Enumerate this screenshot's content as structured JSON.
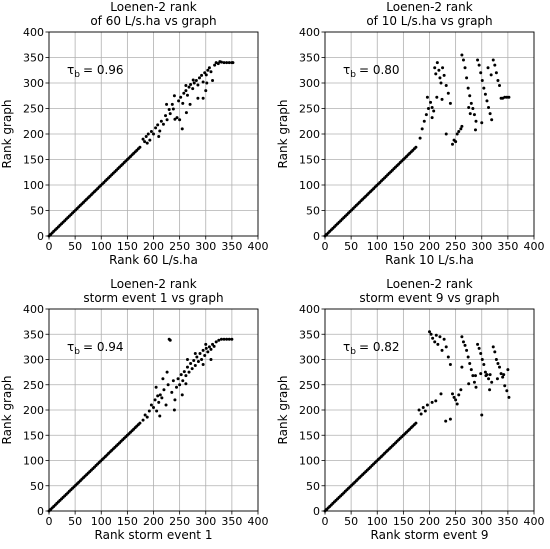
{
  "chart_data": [
    {
      "type": "scatter",
      "title": [
        "Loenen-2 rank",
        "of 60 L/s.ha vs graph"
      ],
      "xlabel": "Rank 60 L/s.ha",
      "ylabel": "Rank graph",
      "xlim": [
        0,
        400
      ],
      "ylim": [
        0,
        400
      ],
      "xticks": [
        0,
        50,
        100,
        150,
        200,
        250,
        300,
        350,
        400
      ],
      "yticks": [
        0,
        50,
        100,
        150,
        200,
        250,
        300,
        350,
        400
      ],
      "grid": true,
      "annotation": {
        "symbol": "τ",
        "subscript": "b",
        "value": "= 0.96"
      },
      "diagonal": {
        "from": 0,
        "to": 175
      },
      "points": [
        [
          180,
          190
        ],
        [
          183,
          185
        ],
        [
          186,
          195
        ],
        [
          188,
          182
        ],
        [
          190,
          200
        ],
        [
          193,
          188
        ],
        [
          196,
          205
        ],
        [
          200,
          200
        ],
        [
          204,
          212
        ],
        [
          208,
          218
        ],
        [
          212,
          206
        ],
        [
          215,
          225
        ],
        [
          219,
          219
        ],
        [
          223,
          236
        ],
        [
          226,
          228
        ],
        [
          230,
          248
        ],
        [
          232,
          240
        ],
        [
          236,
          258
        ],
        [
          238,
          249
        ],
        [
          241,
          229
        ],
        [
          245,
          232
        ],
        [
          248,
          265
        ],
        [
          252,
          272
        ],
        [
          256,
          260
        ],
        [
          258,
          280
        ],
        [
          262,
          285
        ],
        [
          265,
          276
        ],
        [
          268,
          292
        ],
        [
          271,
          297
        ],
        [
          275,
          289
        ],
        [
          278,
          300
        ],
        [
          282,
          305
        ],
        [
          285,
          296
        ],
        [
          288,
          310
        ],
        [
          292,
          315
        ],
        [
          295,
          302
        ],
        [
          298,
          320
        ],
        [
          301,
          316
        ],
        [
          304,
          325
        ],
        [
          307,
          330
        ],
        [
          310,
          322
        ],
        [
          313,
          305
        ],
        [
          317,
          335
        ],
        [
          320,
          340
        ],
        [
          324,
          338
        ],
        [
          327,
          342
        ],
        [
          330,
          341
        ],
        [
          335,
          340
        ],
        [
          340,
          340
        ],
        [
          345,
          340
        ],
        [
          350,
          340
        ],
        [
          352,
          340
        ],
        [
          225,
          258
        ],
        [
          250,
          228
        ],
        [
          263,
          242
        ],
        [
          295,
          270
        ],
        [
          240,
          275
        ],
        [
          270,
          258
        ],
        [
          285,
          270
        ],
        [
          255,
          210
        ],
        [
          300,
          285
        ],
        [
          210,
          195
        ],
        [
          302,
          300
        ],
        [
          262,
          295
        ],
        [
          276,
          306
        ]
      ]
    },
    {
      "type": "scatter",
      "title": [
        "Loenen-2 rank",
        "of 10 L/s.ha vs graph"
      ],
      "xlabel": "Rank 10 L/s.ha",
      "ylabel": "Rank graph",
      "xlim": [
        0,
        400
      ],
      "ylim": [
        0,
        400
      ],
      "xticks": [
        0,
        50,
        100,
        150,
        200,
        250,
        300,
        350,
        400
      ],
      "yticks": [
        0,
        50,
        100,
        150,
        200,
        250,
        300,
        350,
        400
      ],
      "grid": true,
      "annotation": {
        "symbol": "τ",
        "subscript": "b",
        "value": "= 0.80"
      },
      "diagonal": {
        "from": 0,
        "to": 175
      },
      "points": [
        [
          182,
          192
        ],
        [
          186,
          210
        ],
        [
          190,
          225
        ],
        [
          194,
          238
        ],
        [
          198,
          250
        ],
        [
          202,
          262
        ],
        [
          205,
          232
        ],
        [
          208,
          245
        ],
        [
          210,
          330
        ],
        [
          212,
          318
        ],
        [
          215,
          340
        ],
        [
          218,
          325
        ],
        [
          220,
          310
        ],
        [
          222,
          300
        ],
        [
          225,
          330
        ],
        [
          228,
          315
        ],
        [
          232,
          295
        ],
        [
          236,
          280
        ],
        [
          240,
          260
        ],
        [
          244,
          180
        ],
        [
          247,
          188
        ],
        [
          250,
          185
        ],
        [
          253,
          200
        ],
        [
          256,
          205
        ],
        [
          260,
          210
        ],
        [
          262,
          355
        ],
        [
          265,
          345
        ],
        [
          268,
          330
        ],
        [
          271,
          310
        ],
        [
          274,
          290
        ],
        [
          277,
          275
        ],
        [
          280,
          260
        ],
        [
          283,
          250
        ],
        [
          286,
          238
        ],
        [
          289,
          225
        ],
        [
          292,
          345
        ],
        [
          295,
          335
        ],
        [
          298,
          320
        ],
        [
          301,
          305
        ],
        [
          304,
          290
        ],
        [
          307,
          278
        ],
        [
          310,
          265
        ],
        [
          313,
          252
        ],
        [
          316,
          240
        ],
        [
          319,
          228
        ],
        [
          322,
          345
        ],
        [
          325,
          335
        ],
        [
          328,
          320
        ],
        [
          331,
          305
        ],
        [
          334,
          295
        ],
        [
          337,
          270
        ],
        [
          340,
          270
        ],
        [
          344,
          272
        ],
        [
          348,
          272
        ],
        [
          352,
          272
        ],
        [
          214,
          272
        ],
        [
          224,
          268
        ],
        [
          232,
          200
        ],
        [
          262,
          215
        ],
        [
          278,
          240
        ],
        [
          288,
          208
        ],
        [
          300,
          222
        ],
        [
          312,
          330
        ],
        [
          318,
          316
        ],
        [
          275,
          252
        ],
        [
          205,
          252
        ],
        [
          196,
          272
        ]
      ]
    },
    {
      "type": "scatter",
      "title": [
        "Loenen-2 rank",
        "storm event 1 vs graph"
      ],
      "xlabel": "Rank storm event 1",
      "ylabel": "Rank graph",
      "xlim": [
        0,
        400
      ],
      "ylim": [
        0,
        400
      ],
      "xticks": [
        0,
        50,
        100,
        150,
        200,
        250,
        300,
        350,
        400
      ],
      "yticks": [
        0,
        50,
        100,
        150,
        200,
        250,
        300,
        350,
        400
      ],
      "grid": true,
      "annotation": {
        "symbol": "τ",
        "subscript": "b",
        "value": "= 0.94"
      },
      "diagonal": {
        "from": 0,
        "to": 175
      },
      "points": [
        [
          180,
          180
        ],
        [
          184,
          190
        ],
        [
          188,
          186
        ],
        [
          192,
          198
        ],
        [
          196,
          210
        ],
        [
          200,
          205
        ],
        [
          203,
          220
        ],
        [
          206,
          198
        ],
        [
          210,
          215
        ],
        [
          213,
          230
        ],
        [
          216,
          224
        ],
        [
          220,
          240
        ],
        [
          224,
          210
        ],
        [
          228,
          250
        ],
        [
          230,
          340
        ],
        [
          232,
          338
        ],
        [
          235,
          235
        ],
        [
          238,
          258
        ],
        [
          241,
          220
        ],
        [
          244,
          245
        ],
        [
          247,
          262
        ],
        [
          250,
          250
        ],
        [
          253,
          270
        ],
        [
          256,
          258
        ],
        [
          259,
          276
        ],
        [
          262,
          268
        ],
        [
          265,
          285
        ],
        [
          268,
          275
        ],
        [
          271,
          292
        ],
        [
          274,
          282
        ],
        [
          277,
          298
        ],
        [
          280,
          288
        ],
        [
          283,
          305
        ],
        [
          286,
          296
        ],
        [
          289,
          312
        ],
        [
          292,
          300
        ],
        [
          295,
          318
        ],
        [
          298,
          308
        ],
        [
          301,
          322
        ],
        [
          304,
          315
        ],
        [
          307,
          325
        ],
        [
          310,
          320
        ],
        [
          313,
          330
        ],
        [
          316,
          326
        ],
        [
          320,
          335
        ],
        [
          325,
          338
        ],
        [
          330,
          340
        ],
        [
          335,
          340
        ],
        [
          340,
          340
        ],
        [
          345,
          340
        ],
        [
          350,
          340
        ],
        [
          205,
          245
        ],
        [
          218,
          262
        ],
        [
          208,
          228
        ],
        [
          226,
          275
        ],
        [
          255,
          230
        ],
        [
          265,
          300
        ],
        [
          280,
          312
        ],
        [
          295,
          290
        ],
        [
          240,
          200
        ],
        [
          262,
          252
        ],
        [
          310,
          300
        ],
        [
          212,
          188
        ],
        [
          300,
          330
        ]
      ]
    },
    {
      "type": "scatter",
      "title": [
        "Loenen-2 rank",
        "storm event 9 vs graph"
      ],
      "xlabel": "Rank storm event 9",
      "ylabel": "Rank graph",
      "xlim": [
        0,
        400
      ],
      "ylim": [
        0,
        400
      ],
      "xticks": [
        0,
        50,
        100,
        150,
        200,
        250,
        300,
        350,
        400
      ],
      "yticks": [
        0,
        50,
        100,
        150,
        200,
        250,
        300,
        350,
        400
      ],
      "grid": true,
      "annotation": {
        "symbol": "τ",
        "subscript": "b",
        "value": "= 0.82"
      },
      "diagonal": {
        "from": 0,
        "to": 175
      },
      "points": [
        [
          180,
          200
        ],
        [
          184,
          192
        ],
        [
          188,
          205
        ],
        [
          192,
          198
        ],
        [
          196,
          210
        ],
        [
          200,
          355
        ],
        [
          203,
          350
        ],
        [
          206,
          342
        ],
        [
          210,
          335
        ],
        [
          213,
          348
        ],
        [
          216,
          330
        ],
        [
          220,
          345
        ],
        [
          224,
          318
        ],
        [
          228,
          340
        ],
        [
          232,
          325
        ],
        [
          236,
          305
        ],
        [
          240,
          290
        ],
        [
          244,
          232
        ],
        [
          247,
          225
        ],
        [
          250,
          220
        ],
        [
          253,
          212
        ],
        [
          256,
          230
        ],
        [
          260,
          240
        ],
        [
          262,
          345
        ],
        [
          265,
          335
        ],
        [
          268,
          328
        ],
        [
          271,
          318
        ],
        [
          274,
          305
        ],
        [
          277,
          292
        ],
        [
          280,
          280
        ],
        [
          283,
          268
        ],
        [
          286,
          255
        ],
        [
          289,
          245
        ],
        [
          292,
          330
        ],
        [
          295,
          322
        ],
        [
          298,
          312
        ],
        [
          301,
          300
        ],
        [
          304,
          290
        ],
        [
          307,
          275
        ],
        [
          310,
          270
        ],
        [
          313,
          262
        ],
        [
          316,
          270
        ],
        [
          319,
          255
        ],
        [
          322,
          325
        ],
        [
          325,
          315
        ],
        [
          328,
          300
        ],
        [
          331,
          292
        ],
        [
          334,
          285
        ],
        [
          337,
          272
        ],
        [
          340,
          265
        ],
        [
          344,
          248
        ],
        [
          348,
          238
        ],
        [
          352,
          225
        ],
        [
          205,
          215
        ],
        [
          212,
          218
        ],
        [
          222,
          232
        ],
        [
          231,
          178
        ],
        [
          240,
          182
        ],
        [
          262,
          285
        ],
        [
          275,
          252
        ],
        [
          288,
          268
        ],
        [
          300,
          190
        ],
        [
          315,
          240
        ],
        [
          330,
          262
        ],
        [
          342,
          270
        ],
        [
          350,
          280
        ],
        [
          298,
          272
        ],
        [
          308,
          268
        ]
      ]
    }
  ]
}
